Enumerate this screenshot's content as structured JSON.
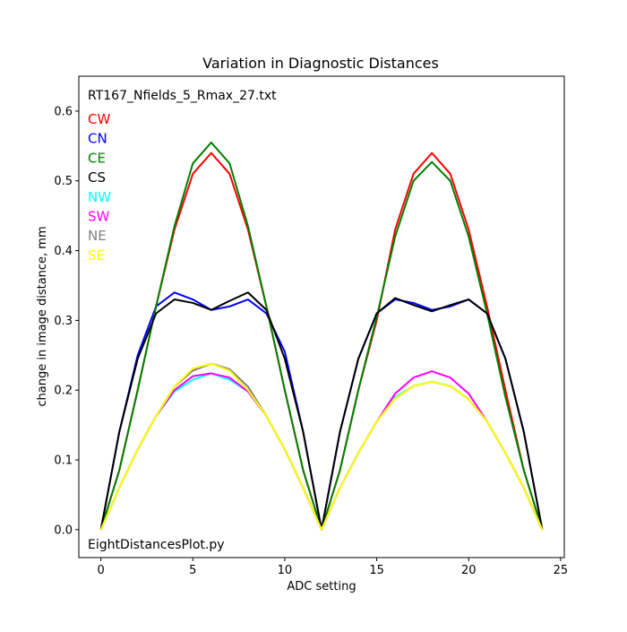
{
  "chart_data": {
    "type": "line",
    "title": "Variation in Diagnostic Distances",
    "xlabel": "ADC setting",
    "ylabel": "change in image distance, mm",
    "xlim": [
      -1.2,
      25.2
    ],
    "ylim": [
      -0.04,
      0.65
    ],
    "xticks": [
      0,
      5,
      10,
      15,
      20,
      25
    ],
    "yticks": [
      0.0,
      0.1,
      0.2,
      0.3,
      0.4,
      0.5,
      0.6
    ],
    "ytick_labels": [
      "0.0",
      "0.1",
      "0.2",
      "0.3",
      "0.4",
      "0.5",
      "0.6"
    ],
    "grid": false,
    "legend_position": "top-left",
    "annotations": {
      "top_left": "RT167_Nfields_5_Rmax_27.txt",
      "bottom_left": "EightDistancesPlot.py"
    },
    "x": [
      0,
      1,
      2,
      3,
      4,
      5,
      6,
      7,
      8,
      9,
      10,
      11,
      12,
      13,
      14,
      15,
      16,
      17,
      18,
      19,
      20,
      21,
      22,
      23,
      24
    ],
    "series": [
      {
        "name": "CW",
        "color": "#ff0000",
        "values": [
          0.0,
          0.085,
          0.2,
          0.32,
          0.43,
          0.51,
          0.54,
          0.51,
          0.43,
          0.32,
          0.2,
          0.085,
          0.0,
          0.085,
          0.2,
          0.3,
          0.43,
          0.51,
          0.54,
          0.51,
          0.43,
          0.32,
          0.2,
          0.085,
          0.0
        ]
      },
      {
        "name": "CN",
        "color": "#0000ff",
        "values": [
          0.0,
          0.14,
          0.25,
          0.32,
          0.34,
          0.33,
          0.315,
          0.32,
          0.33,
          0.31,
          0.255,
          0.14,
          0.0,
          0.14,
          0.245,
          0.31,
          0.33,
          0.325,
          0.315,
          0.32,
          0.33,
          0.31,
          0.245,
          0.14,
          0.0
        ]
      },
      {
        "name": "CE",
        "color": "#008000",
        "values": [
          0.0,
          0.085,
          0.2,
          0.32,
          0.435,
          0.525,
          0.555,
          0.525,
          0.435,
          0.32,
          0.2,
          0.085,
          0.0,
          0.085,
          0.2,
          0.305,
          0.42,
          0.5,
          0.527,
          0.5,
          0.42,
          0.31,
          0.19,
          0.085,
          0.0
        ]
      },
      {
        "name": "CS",
        "color": "#000000",
        "values": [
          0.0,
          0.14,
          0.245,
          0.31,
          0.33,
          0.325,
          0.315,
          0.328,
          0.34,
          0.315,
          0.245,
          0.14,
          0.0,
          0.14,
          0.245,
          0.31,
          0.332,
          0.322,
          0.313,
          0.322,
          0.33,
          0.31,
          0.245,
          0.14,
          0.0
        ]
      },
      {
        "name": "NW",
        "color": "#00ffff",
        "values": [
          0.0,
          0.06,
          0.115,
          0.163,
          0.198,
          0.215,
          0.224,
          0.215,
          0.198,
          0.163,
          0.115,
          0.06,
          0.0,
          0.06,
          0.11,
          0.155,
          0.19,
          0.206,
          0.212,
          0.206,
          0.187,
          0.155,
          0.11,
          0.06,
          0.0
        ]
      },
      {
        "name": "SW",
        "color": "#ff00ff",
        "values": [
          0.0,
          0.06,
          0.115,
          0.163,
          0.2,
          0.22,
          0.224,
          0.218,
          0.198,
          0.163,
          0.115,
          0.06,
          0.0,
          0.06,
          0.11,
          0.155,
          0.195,
          0.218,
          0.227,
          0.218,
          0.195,
          0.155,
          0.11,
          0.06,
          0.0
        ]
      },
      {
        "name": "NE",
        "color": "#808080",
        "values": [
          0.0,
          0.06,
          0.115,
          0.163,
          0.205,
          0.228,
          0.238,
          0.23,
          0.205,
          0.163,
          0.115,
          0.06,
          0.0,
          0.06,
          0.11,
          0.155,
          0.188,
          0.206,
          0.212,
          0.206,
          0.187,
          0.155,
          0.11,
          0.06,
          0.0
        ]
      },
      {
        "name": "SE",
        "color": "#ffff00",
        "values": [
          0.0,
          0.06,
          0.115,
          0.163,
          0.205,
          0.231,
          0.238,
          0.228,
          0.2,
          0.163,
          0.115,
          0.06,
          0.0,
          0.06,
          0.11,
          0.155,
          0.188,
          0.206,
          0.212,
          0.206,
          0.187,
          0.155,
          0.11,
          0.06,
          0.0
        ]
      }
    ]
  }
}
